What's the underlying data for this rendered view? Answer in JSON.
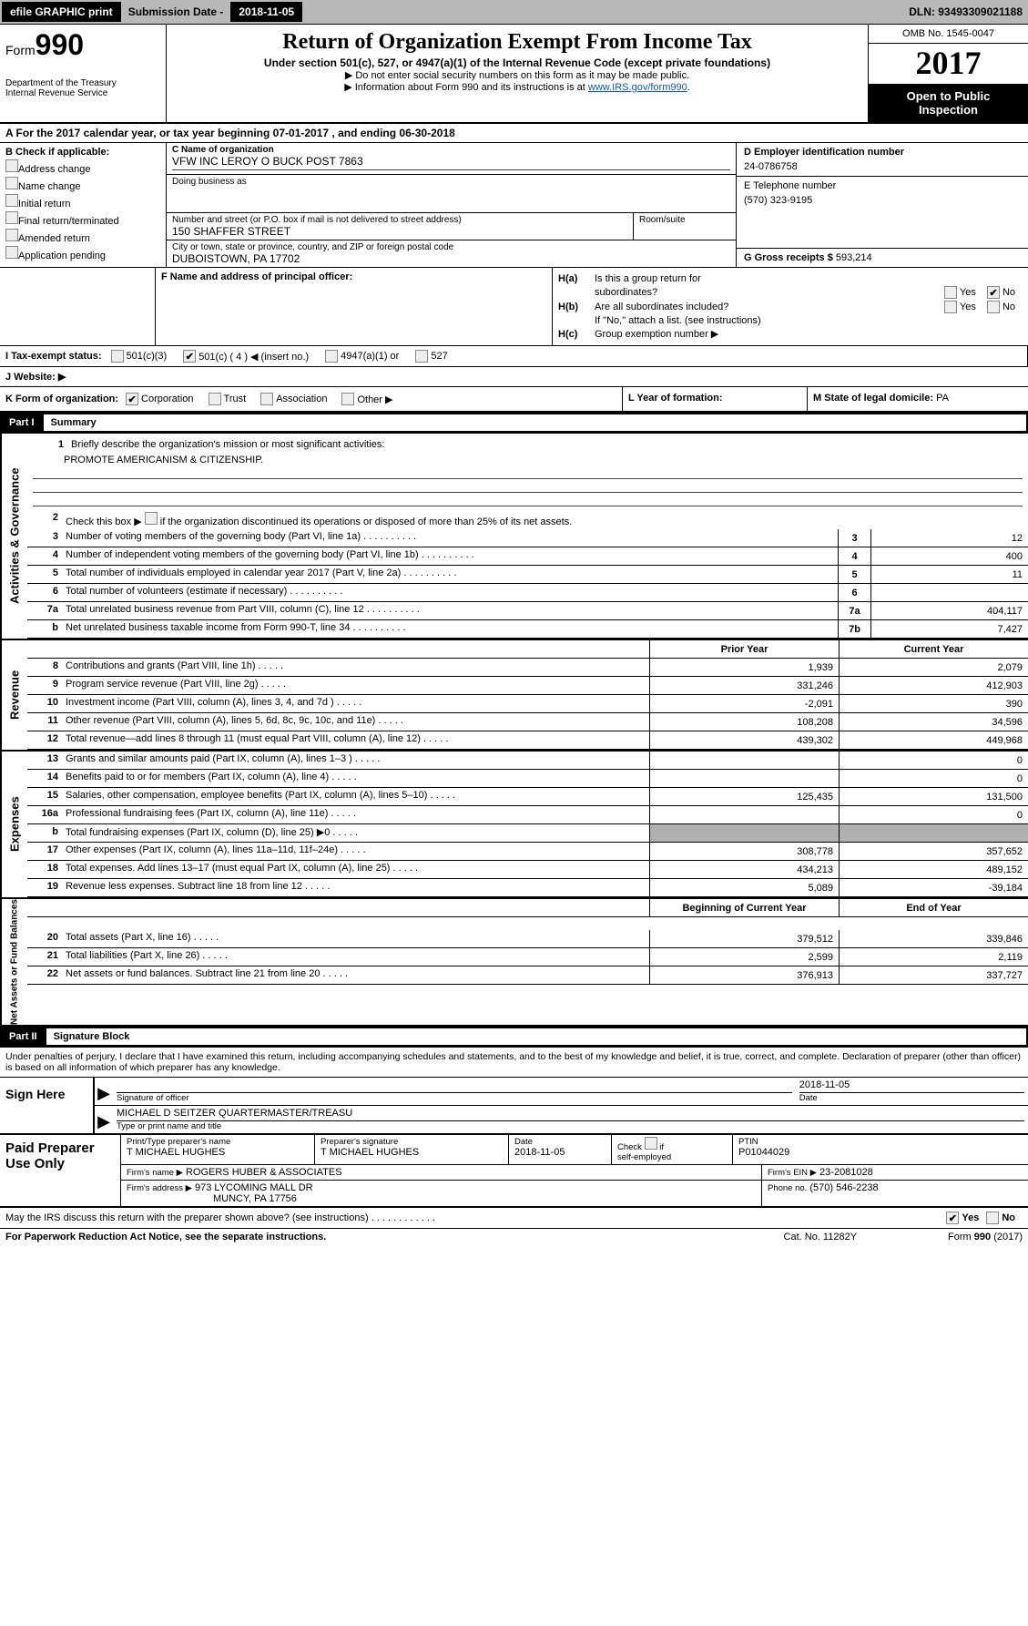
{
  "topbar": {
    "efile": "efile GRAPHIC print",
    "sub_label": "Submission Date -",
    "sub_date": "2018-11-05",
    "dln_label": "DLN:",
    "dln": "93493309021188"
  },
  "header": {
    "form_word": "Form",
    "form_num": "990",
    "dept1": "Department of the Treasury",
    "dept2": "Internal Revenue Service",
    "title": "Return of Organization Exempt From Income Tax",
    "sub": "Under section 501(c), 527, or 4947(a)(1) of the Internal Revenue Code (except private foundations)",
    "note1": "▶ Do not enter social security numbers on this form as it may be made public.",
    "note2_pre": "▶ Information about Form 990 and its instructions is at ",
    "note2_link": "www.IRS.gov/form990",
    "omb": "OMB No. 1545-0047",
    "year": "2017",
    "open1": "Open to Public",
    "open2": "Inspection"
  },
  "A": {
    "text_pre": "A  For the 2017 calendar year, or tax year beginning ",
    "begin": "07-01-2017",
    "mid": "  , and ending ",
    "end": "06-30-2018"
  },
  "B": {
    "head": "B Check if applicable:",
    "opts": [
      "Address change",
      "Name change",
      "Initial return",
      "Final return/terminated",
      "Amended return",
      "Application pending"
    ]
  },
  "C": {
    "name_lbl": "C Name of organization",
    "name": "VFW INC LEROY O BUCK POST 7863",
    "dba_lbl": "Doing business as",
    "dba": "",
    "street_lbl": "Number and street (or P.O. box if mail is not delivered to street address)",
    "street": "150 SHAFFER STREET",
    "room_lbl": "Room/suite",
    "city_lbl": "City or town, state or province, country, and ZIP or foreign postal code",
    "city": "DUBOISTOWN, PA   17702"
  },
  "D": {
    "lbl": "D Employer identification number",
    "val": "24-0786758"
  },
  "E": {
    "lbl": "E Telephone number",
    "val": "(570) 323-9195"
  },
  "G": {
    "lbl": "G Gross receipts $",
    "val": "593,214"
  },
  "F": {
    "lbl": "F  Name and address of principal officer:"
  },
  "H": {
    "a_lbl": "H(a)",
    "a_text1": "Is this a group return for",
    "a_text2": "subordinates?",
    "b_lbl": "H(b)",
    "b_text": "Are all subordinates included?",
    "note": "If \"No,\" attach a list. (see instructions)",
    "c_lbl": "H(c)",
    "c_text": "Group exemption number ▶",
    "yes": "Yes",
    "no": "No"
  },
  "I": {
    "lbl": "I  Tax-exempt status:",
    "o1": "501(c)(3)",
    "o2": "501(c) ( 4 ) ◀ (insert no.)",
    "o3": "4947(a)(1) or",
    "o4": "527"
  },
  "J": {
    "lbl": "J  Website: ▶"
  },
  "K": {
    "lbl": "K Form of organization:",
    "o1": "Corporation",
    "o2": "Trust",
    "o3": "Association",
    "o4": "Other ▶"
  },
  "L": {
    "lbl": "L Year of formation:"
  },
  "M": {
    "lbl": "M State of legal domicile: ",
    "val": "PA"
  },
  "part1": {
    "tag": "Part I",
    "title": "Summary"
  },
  "summary": {
    "l1_lbl": "Briefly describe the organization's mission or most significant activities:",
    "l1_val": "PROMOTE AMERICANISM & CITIZENSHIP.",
    "l2": "Check this box ▶        if the organization discontinued its operations or disposed of more than 25% of its net assets.",
    "rows_gov": [
      {
        "n": "3",
        "t": "Number of voting members of the governing body (Part VI, line 1a)",
        "b": "3",
        "v": "12"
      },
      {
        "n": "4",
        "t": "Number of independent voting members of the governing body (Part VI, line 1b)",
        "b": "4",
        "v": "400"
      },
      {
        "n": "5",
        "t": "Total number of individuals employed in calendar year 2017 (Part V, line 2a)",
        "b": "5",
        "v": "11"
      },
      {
        "n": "6",
        "t": "Total number of volunteers (estimate if necessary)",
        "b": "6",
        "v": ""
      },
      {
        "n": "7a",
        "t": "Total unrelated business revenue from Part VIII, column (C), line 12",
        "b": "7a",
        "v": "404,117"
      },
      {
        "n": "b",
        "t": "Net unrelated business taxable income from Form 990-T, line 34",
        "b": "7b",
        "v": "7,427"
      }
    ],
    "col_prior": "Prior Year",
    "col_current": "Current Year",
    "rows_rev": [
      {
        "n": "8",
        "t": "Contributions and grants (Part VIII, line 1h)",
        "p": "1,939",
        "c": "2,079"
      },
      {
        "n": "9",
        "t": "Program service revenue (Part VIII, line 2g)",
        "p": "331,246",
        "c": "412,903"
      },
      {
        "n": "10",
        "t": "Investment income (Part VIII, column (A), lines 3, 4, and 7d )",
        "p": "-2,091",
        "c": "390"
      },
      {
        "n": "11",
        "t": "Other revenue (Part VIII, column (A), lines 5, 6d, 8c, 9c, 10c, and 11e)",
        "p": "108,208",
        "c": "34,596"
      },
      {
        "n": "12",
        "t": "Total revenue—add lines 8 through 11 (must equal Part VIII, column (A), line 12)",
        "p": "439,302",
        "c": "449,968"
      }
    ],
    "rows_exp": [
      {
        "n": "13",
        "t": "Grants and similar amounts paid (Part IX, column (A), lines 1–3 )",
        "p": "",
        "c": "0"
      },
      {
        "n": "14",
        "t": "Benefits paid to or for members (Part IX, column (A), line 4)",
        "p": "",
        "c": "0"
      },
      {
        "n": "15",
        "t": "Salaries, other compensation, employee benefits (Part IX, column (A), lines 5–10)",
        "p": "125,435",
        "c": "131,500"
      },
      {
        "n": "16a",
        "t": "Professional fundraising fees (Part IX, column (A), line 11e)",
        "p": "",
        "c": "0"
      },
      {
        "n": "b",
        "t": "Total fundraising expenses (Part IX, column (D), line 25) ▶0",
        "p": "GREY",
        "c": "GREY"
      },
      {
        "n": "17",
        "t": "Other expenses (Part IX, column (A), lines 11a–11d, 11f–24e)",
        "p": "308,778",
        "c": "357,652"
      },
      {
        "n": "18",
        "t": "Total expenses. Add lines 13–17 (must equal Part IX, column (A), line 25)",
        "p": "434,213",
        "c": "489,152"
      },
      {
        "n": "19",
        "t": "Revenue less expenses. Subtract line 18 from line 12",
        "p": "5,089",
        "c": "-39,184"
      }
    ],
    "col_begin": "Beginning of Current Year",
    "col_end": "End of Year",
    "rows_net": [
      {
        "n": "20",
        "t": "Total assets (Part X, line 16)",
        "p": "379,512",
        "c": "339,846"
      },
      {
        "n": "21",
        "t": "Total liabilities (Part X, line 26)",
        "p": "2,599",
        "c": "2,119"
      },
      {
        "n": "22",
        "t": "Net assets or fund balances. Subtract line 21 from line 20",
        "p": "376,913",
        "c": "337,727"
      }
    ],
    "side_gov": "Activities & Governance",
    "side_rev": "Revenue",
    "side_exp": "Expenses",
    "side_net": "Net Assets or Fund Balances"
  },
  "part2": {
    "tag": "Part II",
    "title": "Signature Block"
  },
  "sig": {
    "penalty": "Under penalties of perjury, I declare that I have examined this return, including accompanying schedules and statements, and to the best of my knowledge and belief, it is true, correct, and complete. Declaration of preparer (other than officer) is based on all information of which preparer has any knowledge.",
    "sign_here": "Sign Here",
    "sig_officer_lbl": "Signature of officer",
    "sig_date": "2018-11-05",
    "date_lbl": "Date",
    "name_val": "MICHAEL D SEITZER QUARTERMASTER/TREASU",
    "name_lbl": "Type or print name and title"
  },
  "paid": {
    "title": "Paid Preparer Use Only",
    "r1": {
      "c1_lbl": "Print/Type preparer's name",
      "c1": "T MICHAEL HUGHES",
      "c2_lbl": "Preparer's signature",
      "c2": "T MICHAEL HUGHES",
      "c3_lbl": "Date",
      "c3": "2018-11-05",
      "c4_lbl": "Check         if self-employed",
      "c5_lbl": "PTIN",
      "c5": "P01044029"
    },
    "r2": {
      "lbl": "Firm's name      ▶",
      "val": "ROGERS HUBER & ASSOCIATES",
      "ein_lbl": "Firm's EIN ▶",
      "ein": "23-2081028"
    },
    "r3": {
      "lbl": "Firm's address ▶",
      "val1": "973 LYCOMING MALL DR",
      "val2": "MUNCY, PA  17756",
      "ph_lbl": "Phone no.",
      "ph": "(570) 546-2238"
    }
  },
  "footer": {
    "q": "May the IRS discuss this return with the preparer shown above? (see instructions)",
    "yes": "Yes",
    "no": "No",
    "pra": "For Paperwork Reduction Act Notice, see the separate instructions.",
    "cat": "Cat. No. 11282Y",
    "form": "Form 990 (2017)"
  }
}
